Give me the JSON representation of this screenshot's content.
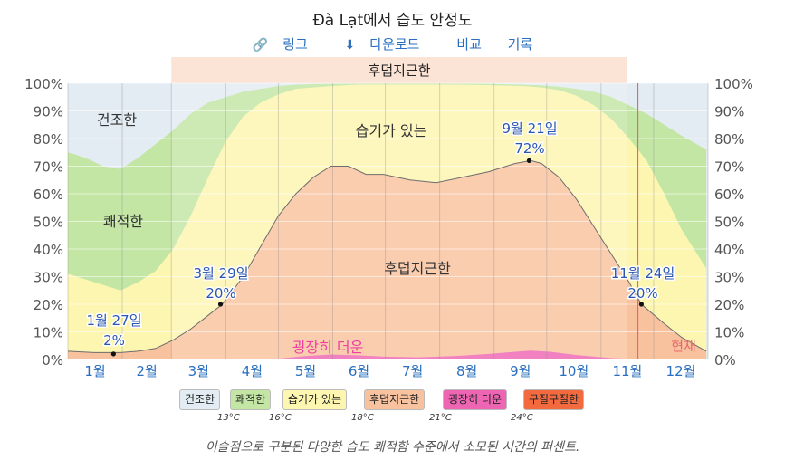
{
  "header": {
    "title": "Đà Lạt에서 습도 안정도",
    "link_label": "링크",
    "download_label": "다운로드",
    "compare_label": "비교",
    "history_label": "기록"
  },
  "chart_data": {
    "type": "area",
    "title": "Đà Lạt에서 습도 안정도",
    "x_labels": [
      "1월",
      "2월",
      "3월",
      "4월",
      "5월",
      "6월",
      "7월",
      "8월",
      "9월",
      "10월",
      "11월",
      "12월"
    ],
    "y_ticks": [
      "0%",
      "10%",
      "20%",
      "30%",
      "40%",
      "50%",
      "60%",
      "70%",
      "80%",
      "90%",
      "100%"
    ],
    "ylim": [
      0,
      100
    ],
    "grid": true,
    "band_labels": [
      "건조한",
      "쾌적한",
      "습기가 있는",
      "후덥지근한",
      "굉장히 더운",
      "현재"
    ],
    "season_label": "후덥지근한",
    "season_range_days": [
      59,
      319
    ],
    "today_day": 325,
    "series": [
      {
        "name": "후덥지근한",
        "color": "#f9c29e",
        "x_days": [
          0,
          15,
          30,
          40,
          50,
          60,
          70,
          80,
          88,
          100,
          110,
          120,
          130,
          140,
          150,
          160,
          170,
          180,
          195,
          210,
          225,
          240,
          255,
          264,
          270,
          280,
          290,
          300,
          310,
          320,
          327,
          340,
          350,
          364
        ],
        "values": [
          3,
          2.5,
          2.5,
          3,
          4,
          7,
          11,
          16,
          20,
          30,
          41,
          52,
          60,
          66,
          70,
          70,
          67,
          67,
          65,
          64,
          66,
          68,
          71,
          72,
          71,
          66,
          58,
          48,
          38,
          28,
          20,
          13,
          8,
          3
        ]
      },
      {
        "name": "습기가 있는",
        "color": "#fdf6b0",
        "x_days": [
          0,
          15,
          30,
          40,
          50,
          60,
          70,
          80,
          90,
          100,
          110,
          120,
          130,
          140,
          150,
          165,
          180,
          200,
          220,
          240,
          260,
          270,
          280,
          290,
          300,
          310,
          320,
          330,
          340,
          350,
          364
        ],
        "values": [
          31,
          28,
          25,
          28,
          32,
          40,
          52,
          66,
          79,
          88,
          93,
          96,
          98,
          98.5,
          99,
          99.5,
          99.5,
          99.5,
          99.5,
          99.3,
          99,
          98.5,
          97.5,
          95.5,
          92,
          87,
          80,
          72,
          60,
          47,
          33
        ]
      },
      {
        "name": "쾌적한",
        "color": "#c4e6a4",
        "x_days": [
          0,
          10,
          20,
          30,
          40,
          50,
          60,
          70,
          80,
          90,
          100,
          110,
          120,
          130,
          140,
          150,
          165,
          180,
          200,
          220,
          240,
          260,
          270,
          280,
          290,
          300,
          310,
          320,
          330,
          340,
          350,
          364
        ],
        "values": [
          75,
          73,
          70,
          69,
          73,
          78,
          83,
          89,
          93,
          95,
          97,
          98,
          99,
          99.5,
          99.7,
          99.8,
          99.9,
          99.9,
          99.9,
          99.9,
          99.8,
          99.5,
          99.2,
          98.8,
          98,
          97,
          95,
          92,
          89,
          85,
          81,
          76
        ]
      },
      {
        "name": "굉장히 더운",
        "color": "#ee66b3",
        "x_days": [
          0,
          60,
          90,
          120,
          135,
          150,
          165,
          180,
          200,
          220,
          240,
          255,
          264,
          275,
          290,
          310,
          330,
          364
        ],
        "values": [
          0,
          0,
          0,
          0.3,
          1.2,
          1.8,
          1.5,
          1.0,
          0.8,
          1.2,
          2.0,
          2.8,
          3.2,
          2.8,
          1.6,
          0.5,
          0,
          0
        ]
      }
    ],
    "annotations": [
      {
        "label": "1월 27일",
        "value": "2%",
        "day": 26,
        "y": 2
      },
      {
        "label": "3월 29일",
        "value": "20%",
        "day": 87,
        "y": 20
      },
      {
        "label": "9월 21일",
        "value": "72%",
        "day": 263,
        "y": 72
      },
      {
        "label": "11월 24일",
        "value": "20%",
        "day": 327,
        "y": 20
      }
    ]
  },
  "legend": {
    "items": [
      {
        "label": "건조한",
        "color": "#e2ecf2"
      },
      {
        "label": "쾌적한",
        "color": "#c4e6a4"
      },
      {
        "label": "습기가 있는",
        "color": "#fdf6b0"
      },
      {
        "label": "후덥지근한",
        "color": "#f9c29e"
      },
      {
        "label": "굉장히 더운",
        "color": "#ee66b3"
      },
      {
        "label": "구질구질한",
        "color": "#f46a3f"
      }
    ],
    "thresholds": [
      "13°C",
      "16°C",
      "18°C",
      "21°C",
      "24°C"
    ]
  },
  "caption": "이슬점으로 구분된 다양한 습도 쾌적함 수준에서 소모된 시간의 퍼센트.",
  "colors": {
    "dry": "#e2ecf2",
    "comfortable": "#c4e6a4",
    "humid": "#fdf6b0",
    "muggy": "#f9c29e",
    "oppressive": "#ee66b3",
    "miserable": "#f46a3f",
    "season_band": "#fbe3d6",
    "today_line": "#e6676b",
    "link": "#2a6fbf"
  },
  "icons": {
    "link": "link-icon",
    "download": "download-icon"
  }
}
